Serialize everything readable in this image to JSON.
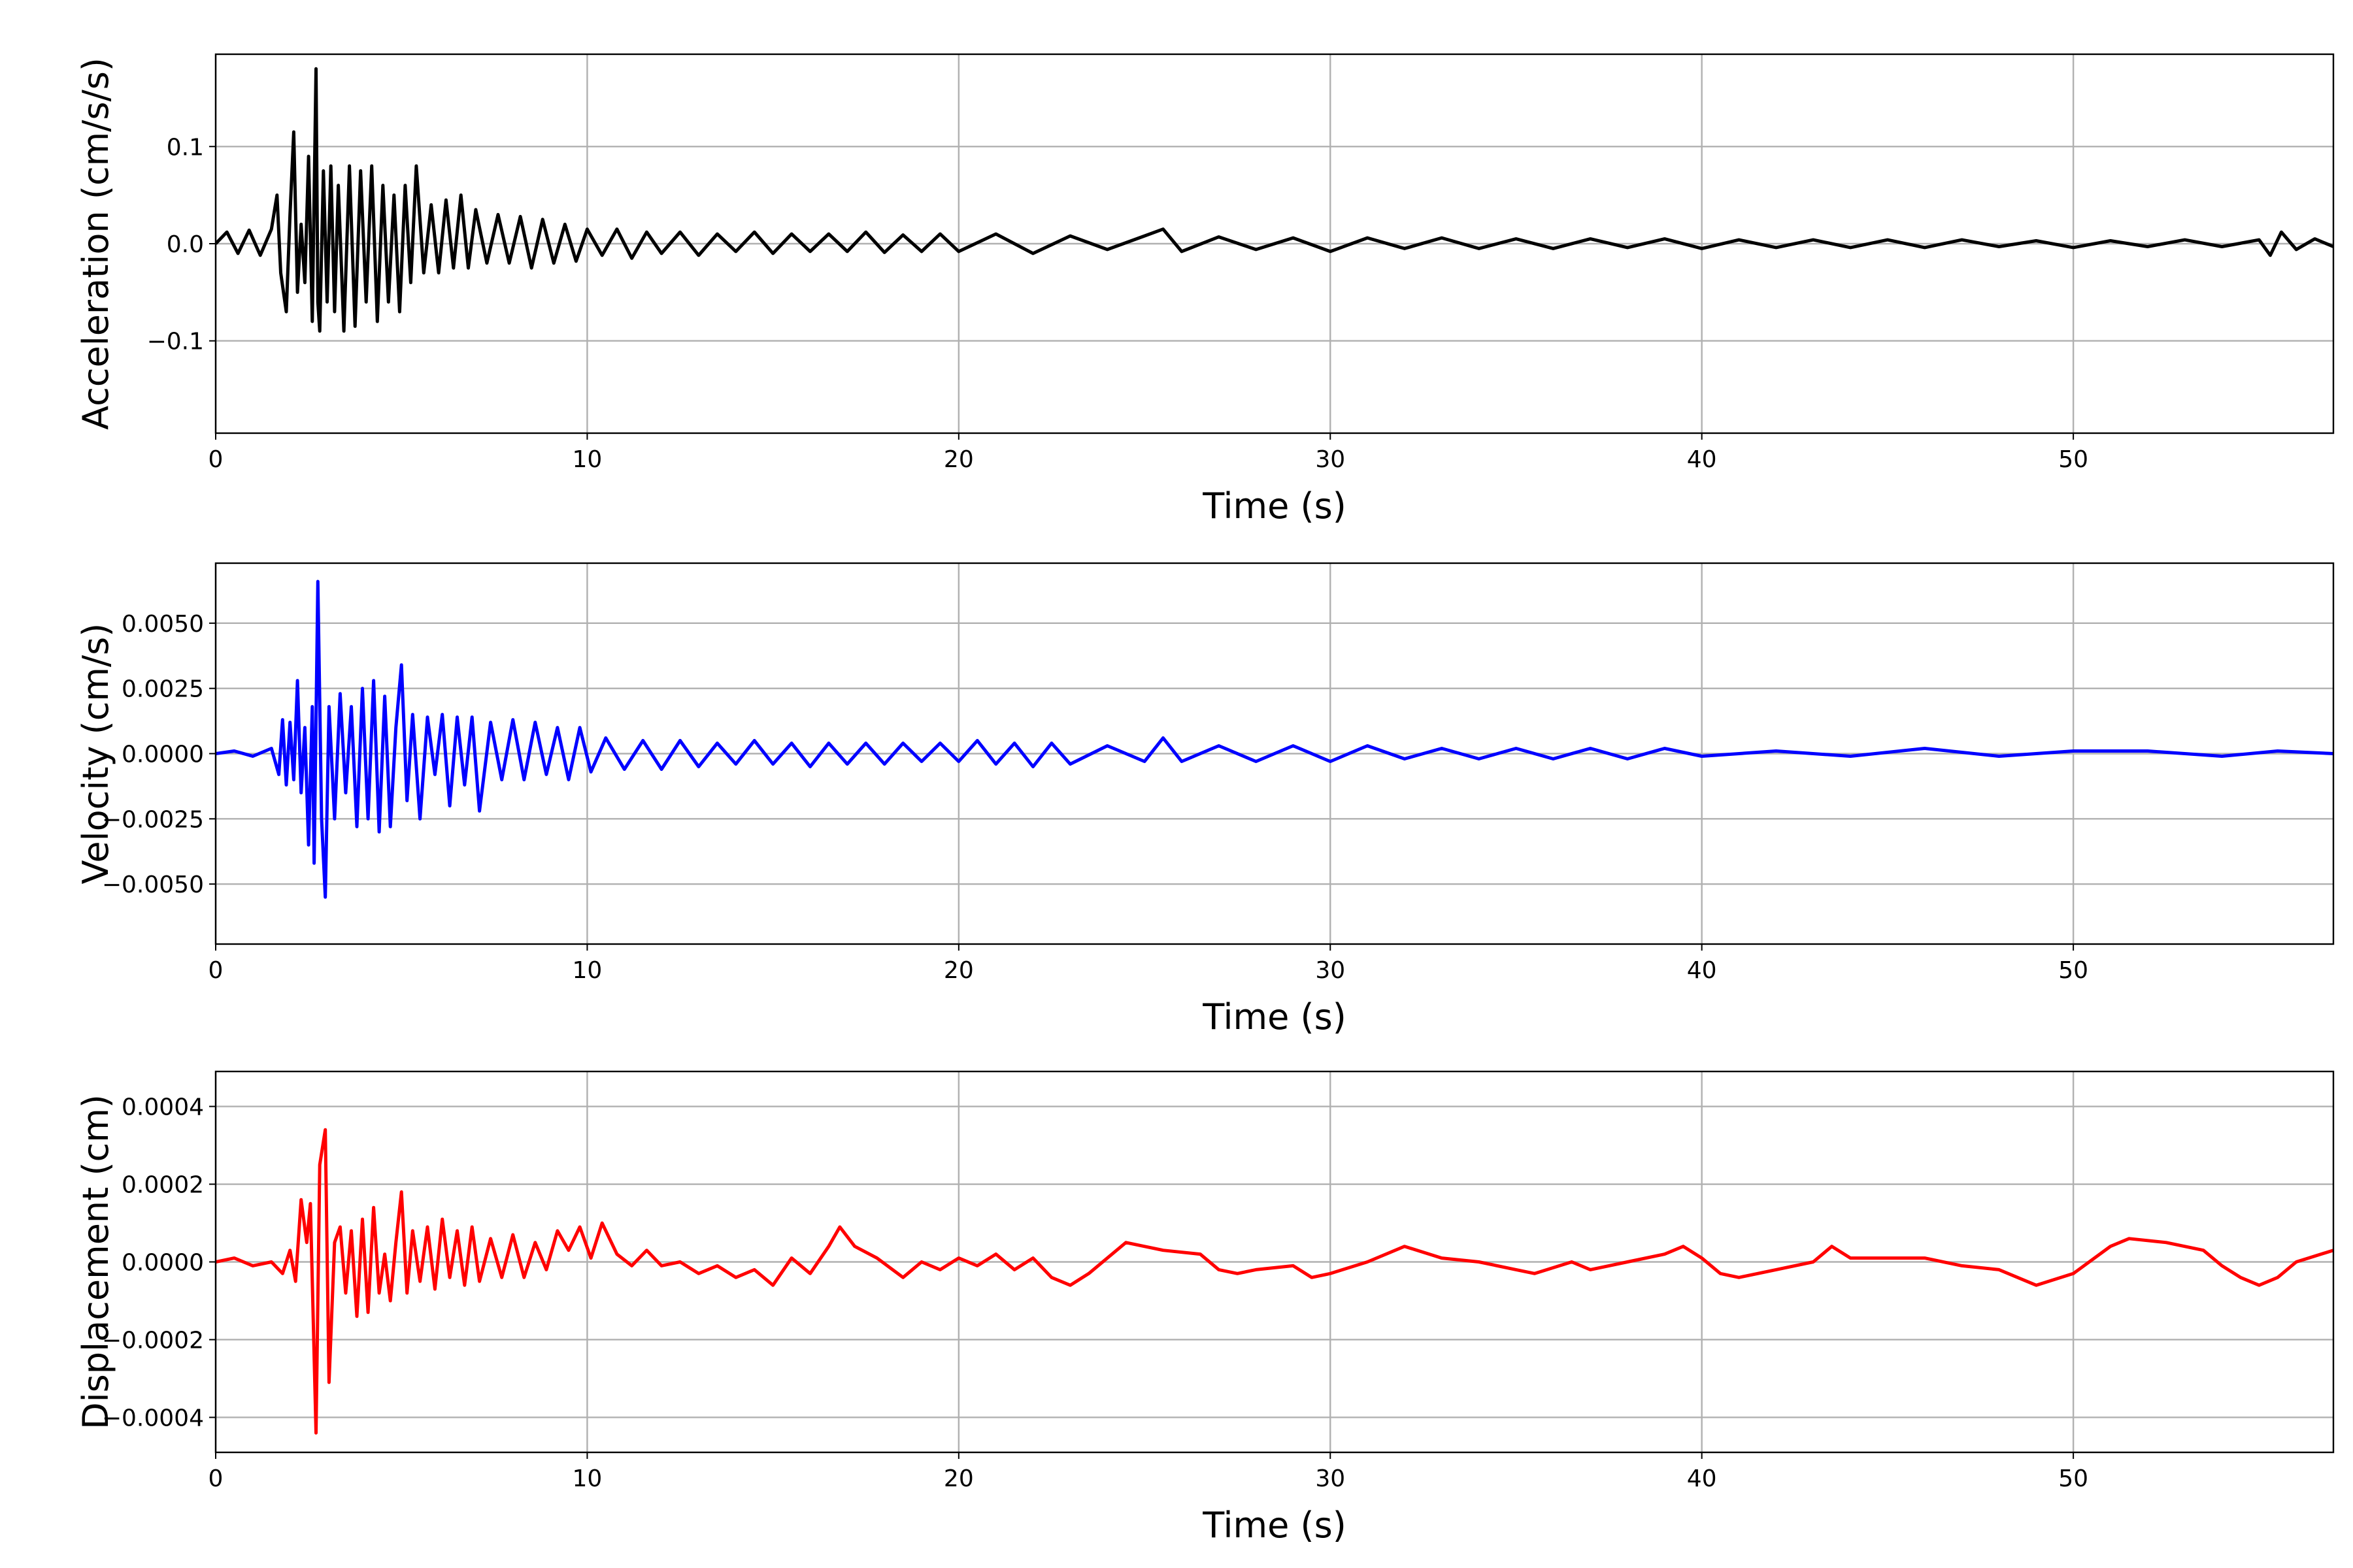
{
  "chart_data": [
    {
      "type": "line",
      "xlabel": "Time (s)",
      "ylabel": "Acceleration (cm/s/s)",
      "xlim": [
        0,
        57
      ],
      "ylim": [
        -0.195,
        0.195
      ],
      "xticks": [
        0,
        10,
        20,
        30,
        40,
        50
      ],
      "xtick_labels": [
        "0",
        "10",
        "20",
        "30",
        "40",
        "50"
      ],
      "yticks": [
        -0.1,
        0.0,
        0.1
      ],
      "ytick_labels": [
        "−0.1",
        "0.0",
        "0.1"
      ],
      "grid": true,
      "color": "#000000",
      "x": [
        0,
        0.3,
        0.6,
        0.9,
        1.2,
        1.5,
        1.65,
        1.75,
        1.9,
        2.0,
        2.1,
        2.2,
        2.3,
        2.4,
        2.5,
        2.6,
        2.7,
        2.75,
        2.8,
        2.9,
        3.0,
        3.1,
        3.2,
        3.3,
        3.45,
        3.6,
        3.75,
        3.9,
        4.05,
        4.2,
        4.35,
        4.5,
        4.65,
        4.8,
        4.95,
        5.1,
        5.25,
        5.4,
        5.6,
        5.8,
        6.0,
        6.2,
        6.4,
        6.6,
        6.8,
        7.0,
        7.3,
        7.6,
        7.9,
        8.2,
        8.5,
        8.8,
        9.1,
        9.4,
        9.7,
        10.0,
        10.4,
        10.8,
        11.2,
        11.6,
        12.0,
        12.5,
        13.0,
        13.5,
        14.0,
        14.5,
        15.0,
        15.5,
        16.0,
        16.5,
        17.0,
        17.5,
        18.0,
        18.5,
        19.0,
        19.5,
        20.0,
        21.0,
        22.0,
        23.0,
        24.0,
        25.0,
        25.5,
        26.0,
        27.0,
        28.0,
        29.0,
        30.0,
        31.0,
        32.0,
        33.0,
        34.0,
        35.0,
        36.0,
        37.0,
        38.0,
        39.0,
        40.0,
        41.0,
        42.0,
        43.0,
        44.0,
        45.0,
        46.0,
        47.0,
        48.0,
        49.0,
        50.0,
        51.0,
        52.0,
        53.0,
        54.0,
        55.0,
        55.3,
        55.6,
        56.0,
        56.5,
        57.0
      ],
      "values": [
        0.0,
        0.012,
        -0.01,
        0.014,
        -0.012,
        0.015,
        0.05,
        -0.03,
        -0.07,
        0.03,
        0.115,
        -0.05,
        0.02,
        -0.04,
        0.09,
        -0.08,
        0.18,
        -0.06,
        -0.09,
        0.075,
        -0.06,
        0.08,
        -0.07,
        0.06,
        -0.09,
        0.08,
        -0.085,
        0.075,
        -0.06,
        0.08,
        -0.08,
        0.06,
        -0.06,
        0.05,
        -0.07,
        0.06,
        -0.04,
        0.08,
        -0.03,
        0.04,
        -0.03,
        0.045,
        -0.025,
        0.05,
        -0.025,
        0.035,
        -0.02,
        0.03,
        -0.02,
        0.028,
        -0.025,
        0.025,
        -0.02,
        0.02,
        -0.018,
        0.015,
        -0.012,
        0.015,
        -0.015,
        0.012,
        -0.01,
        0.012,
        -0.012,
        0.01,
        -0.008,
        0.012,
        -0.01,
        0.01,
        -0.008,
        0.01,
        -0.008,
        0.012,
        -0.009,
        0.009,
        -0.008,
        0.01,
        -0.008,
        0.01,
        -0.01,
        0.008,
        -0.006,
        0.008,
        0.015,
        -0.008,
        0.007,
        -0.006,
        0.006,
        -0.008,
        0.006,
        -0.005,
        0.006,
        -0.005,
        0.005,
        -0.005,
        0.005,
        -0.004,
        0.005,
        -0.005,
        0.004,
        -0.004,
        0.004,
        -0.004,
        0.004,
        -0.004,
        0.004,
        -0.003,
        0.003,
        -0.004,
        0.003,
        -0.003,
        0.004,
        -0.003,
        0.004,
        -0.012,
        0.012,
        -0.006,
        0.005,
        -0.003
      ]
    },
    {
      "type": "line",
      "xlabel": "Time (s)",
      "ylabel": "Velocity (cm/s)",
      "xlim": [
        0,
        57
      ],
      "ylim": [
        -0.0073,
        0.0073
      ],
      "xticks": [
        0,
        10,
        20,
        30,
        40,
        50
      ],
      "xtick_labels": [
        "0",
        "10",
        "20",
        "30",
        "40",
        "50"
      ],
      "yticks": [
        -0.005,
        -0.0025,
        0.0,
        0.0025,
        0.005
      ],
      "ytick_labels": [
        "−0.0050",
        "−0.0025",
        "0.0000",
        "0.0025",
        "0.0050"
      ],
      "grid": true,
      "color": "#0000ff",
      "x": [
        0,
        0.5,
        1.0,
        1.5,
        1.7,
        1.8,
        1.9,
        2.0,
        2.1,
        2.2,
        2.3,
        2.4,
        2.5,
        2.6,
        2.65,
        2.75,
        2.85,
        2.95,
        3.05,
        3.2,
        3.35,
        3.5,
        3.65,
        3.8,
        3.95,
        4.1,
        4.25,
        4.4,
        4.55,
        4.7,
        4.85,
        5.0,
        5.15,
        5.3,
        5.5,
        5.7,
        5.9,
        6.1,
        6.3,
        6.5,
        6.7,
        6.9,
        7.1,
        7.4,
        7.7,
        8.0,
        8.3,
        8.6,
        8.9,
        9.2,
        9.5,
        9.8,
        10.1,
        10.5,
        11.0,
        11.5,
        12.0,
        12.5,
        13.0,
        13.5,
        14.0,
        14.5,
        15.0,
        15.5,
        16.0,
        16.5,
        17.0,
        17.5,
        18.0,
        18.5,
        19.0,
        19.5,
        20.0,
        20.5,
        21.0,
        21.5,
        22.0,
        22.5,
        23.0,
        24.0,
        25.0,
        25.5,
        26.0,
        27.0,
        28.0,
        29.0,
        30.0,
        31.0,
        32.0,
        33.0,
        34.0,
        35.0,
        36.0,
        37.0,
        38.0,
        39.0,
        40.0,
        42.0,
        44.0,
        46.0,
        48.0,
        50.0,
        52.0,
        54.0,
        55.5,
        57.0
      ],
      "values": [
        0.0,
        0.0001,
        -0.0001,
        0.0002,
        -0.0008,
        0.0013,
        -0.0012,
        0.0012,
        -0.001,
        0.0028,
        -0.0015,
        0.001,
        -0.0035,
        0.0018,
        -0.0042,
        0.0066,
        -0.0025,
        -0.0055,
        0.0018,
        -0.0025,
        0.0023,
        -0.0015,
        0.0018,
        -0.0028,
        0.0025,
        -0.0025,
        0.0028,
        -0.003,
        0.0022,
        -0.0028,
        0.001,
        0.0034,
        -0.0018,
        0.0015,
        -0.0025,
        0.0014,
        -0.0008,
        0.0015,
        -0.002,
        0.0014,
        -0.0012,
        0.0014,
        -0.0022,
        0.0012,
        -0.001,
        0.0013,
        -0.001,
        0.0012,
        -0.0008,
        0.001,
        -0.001,
        0.001,
        -0.0007,
        0.0006,
        -0.0006,
        0.0005,
        -0.0006,
        0.0005,
        -0.0005,
        0.0004,
        -0.0004,
        0.0005,
        -0.0004,
        0.0004,
        -0.0005,
        0.0004,
        -0.0004,
        0.0004,
        -0.0004,
        0.0004,
        -0.0003,
        0.0004,
        -0.0003,
        0.0005,
        -0.0004,
        0.0004,
        -0.0005,
        0.0004,
        -0.0004,
        0.0003,
        -0.0003,
        0.0006,
        -0.0003,
        0.0003,
        -0.0003,
        0.0003,
        -0.0003,
        0.0003,
        -0.0002,
        0.0002,
        -0.0002,
        0.0002,
        -0.0002,
        0.0002,
        -0.0002,
        0.0002,
        -0.0001,
        0.0001,
        -0.0001,
        0.0002,
        -0.0001,
        0.0001,
        0.0001,
        -0.0001,
        0.0001,
        0.0
      ]
    },
    {
      "type": "line",
      "xlabel": "Time (s)",
      "ylabel": "Displacement (cm)",
      "xlim": [
        0,
        57
      ],
      "ylim": [
        -0.00049,
        0.00049
      ],
      "xticks": [
        0,
        10,
        20,
        30,
        40,
        50
      ],
      "xtick_labels": [
        "0",
        "10",
        "20",
        "30",
        "40",
        "50"
      ],
      "yticks": [
        -0.0004,
        -0.0002,
        0.0,
        0.0002,
        0.0004
      ],
      "ytick_labels": [
        "−0.0004",
        "−0.0002",
        "0.0000",
        "0.0002",
        "0.0004"
      ],
      "grid": true,
      "color": "#ff0000",
      "x": [
        0,
        0.5,
        1.0,
        1.5,
        1.8,
        2.0,
        2.15,
        2.3,
        2.45,
        2.55,
        2.7,
        2.8,
        2.95,
        3.05,
        3.2,
        3.35,
        3.5,
        3.65,
        3.8,
        3.95,
        4.1,
        4.25,
        4.4,
        4.55,
        4.7,
        4.85,
        5.0,
        5.15,
        5.3,
        5.5,
        5.7,
        5.9,
        6.1,
        6.3,
        6.5,
        6.7,
        6.9,
        7.1,
        7.4,
        7.7,
        8.0,
        8.3,
        8.6,
        8.9,
        9.2,
        9.5,
        9.8,
        10.1,
        10.4,
        10.8,
        11.2,
        11.6,
        12.0,
        12.5,
        13.0,
        13.5,
        14.0,
        14.5,
        15.0,
        15.5,
        16.0,
        16.5,
        16.8,
        17.2,
        17.8,
        18.5,
        19.0,
        19.5,
        20.0,
        20.5,
        21.0,
        21.5,
        22.0,
        22.5,
        23.0,
        23.5,
        24.0,
        24.5,
        25.5,
        26.5,
        27.0,
        27.5,
        28.0,
        29.0,
        29.5,
        30.0,
        31.0,
        32.0,
        33.0,
        34.0,
        35.0,
        35.5,
        36.5,
        37.0,
        38.0,
        39.0,
        39.5,
        40.0,
        40.5,
        41.0,
        42.0,
        43.0,
        43.5,
        44.0,
        45.0,
        46.0,
        47.0,
        48.0,
        49.0,
        50.0,
        51.0,
        51.5,
        52.5,
        53.5,
        54.0,
        54.5,
        55.0,
        55.5,
        56.0,
        57.0
      ],
      "values": [
        0.0,
        1e-05,
        -1e-05,
        0.0,
        -3e-05,
        3e-05,
        -5e-05,
        0.00016,
        5e-05,
        0.00015,
        -0.00044,
        0.00025,
        0.00034,
        -0.00031,
        5e-05,
        9e-05,
        -8e-05,
        8e-05,
        -0.00014,
        0.00011,
        -0.00013,
        0.00014,
        -8e-05,
        2e-05,
        -0.0001,
        5e-05,
        0.00018,
        -8e-05,
        8e-05,
        -5e-05,
        9e-05,
        -7e-05,
        0.00011,
        -4e-05,
        8e-05,
        -6e-05,
        9e-05,
        -5e-05,
        6e-05,
        -4e-05,
        7e-05,
        -4e-05,
        5e-05,
        -2e-05,
        8e-05,
        3e-05,
        9e-05,
        1e-05,
        0.0001,
        2e-05,
        -1e-05,
        3e-05,
        -1e-05,
        0.0,
        -3e-05,
        -1e-05,
        -4e-05,
        -2e-05,
        -6e-05,
        1e-05,
        -3e-05,
        4e-05,
        9e-05,
        4e-05,
        1e-05,
        -4e-05,
        0.0,
        -2e-05,
        1e-05,
        -1e-05,
        2e-05,
        -2e-05,
        1e-05,
        -4e-05,
        -6e-05,
        -3e-05,
        1e-05,
        5e-05,
        3e-05,
        2e-05,
        -2e-05,
        -3e-05,
        -2e-05,
        -1e-05,
        -4e-05,
        -3e-05,
        0.0,
        4e-05,
        1e-05,
        0.0,
        -2e-05,
        -3e-05,
        0.0,
        -2e-05,
        0.0,
        2e-05,
        4e-05,
        1e-05,
        -3e-05,
        -4e-05,
        -2e-05,
        0.0,
        4e-05,
        1e-05,
        1e-05,
        1e-05,
        -1e-05,
        -2e-05,
        -6e-05,
        -3e-05,
        4e-05,
        6e-05,
        5e-05,
        3e-05,
        -1e-05,
        -4e-05,
        -6e-05,
        -4e-05,
        0.0,
        3e-05
      ]
    }
  ]
}
